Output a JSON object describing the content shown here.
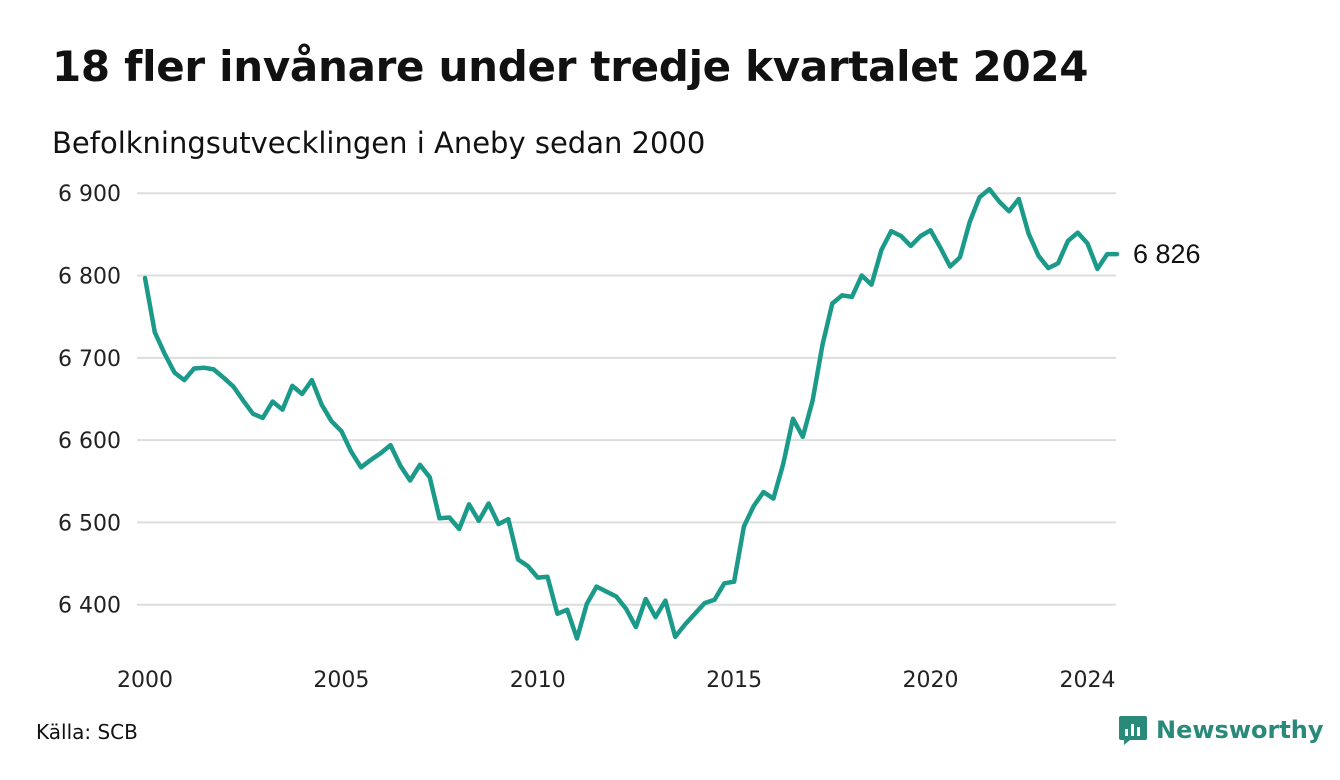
{
  "header": {
    "title": "18 fler invånare under tredje kvartalet 2024",
    "subtitle": "Befolkningsutvecklingen i Aneby sedan 2000"
  },
  "footer": {
    "source": "Källa: SCB",
    "brand": "Newsworthy",
    "brand_icon": "newsworthy-logo-icon"
  },
  "colors": {
    "line": "#1b9a8a",
    "grid": "#dddddd",
    "brand": "#2a8a7a"
  },
  "chart_data": {
    "type": "line",
    "title": "18 fler invånare under tredje kvartalet 2024",
    "subtitle": "Befolkningsutvecklingen i Aneby sedan 2000",
    "xlabel": "",
    "ylabel": "",
    "grid": true,
    "legend": "none",
    "xlim": [
      2000,
      2024.75
    ],
    "ylim": [
      6345,
      6910
    ],
    "x_ticks": [
      2000,
      2005,
      2010,
      2015,
      2020,
      2024
    ],
    "x_tick_labels": [
      "2000",
      "2005",
      "2010",
      "2015",
      "2020",
      "2024"
    ],
    "y_ticks": [
      6400,
      6500,
      6600,
      6700,
      6800,
      6900
    ],
    "y_tick_labels": [
      "6 400",
      "6 500",
      "6 600",
      "6 700",
      "6 800",
      "6 900"
    ],
    "end_label": "6 826",
    "series": [
      {
        "x": [
          2000,
          2000.25,
          2000.5,
          2000.75,
          2001,
          2001.25,
          2001.5,
          2001.75,
          2002,
          2002.25,
          2002.5,
          2002.75,
          2003,
          2003.25,
          2003.5,
          2003.75,
          2004,
          2004.25,
          2004.5,
          2004.75,
          2005,
          2005.25,
          2005.5,
          2005.75,
          2006,
          2006.25,
          2006.5,
          2006.75,
          2007,
          2007.25,
          2007.5,
          2007.75,
          2008,
          2008.25,
          2008.5,
          2008.75,
          2009,
          2009.25,
          2009.5,
          2009.75,
          2010,
          2010.25,
          2010.5,
          2010.75,
          2011,
          2011.25,
          2011.5,
          2011.75,
          2012,
          2012.25,
          2012.5,
          2012.75,
          2013,
          2013.25,
          2013.5,
          2013.75,
          2014,
          2014.25,
          2014.5,
          2014.75,
          2015,
          2015.25,
          2015.5,
          2015.75,
          2016,
          2016.25,
          2016.5,
          2016.75,
          2017,
          2017.25,
          2017.5,
          2017.75,
          2018,
          2018.25,
          2018.5,
          2018.75,
          2019,
          2019.25,
          2019.5,
          2019.75,
          2020,
          2020.25,
          2020.5,
          2020.75,
          2021,
          2021.25,
          2021.5,
          2021.75,
          2022,
          2022.25,
          2022.5,
          2022.75,
          2023,
          2023.25,
          2023.5,
          2023.75,
          2024,
          2024.25,
          2024.5,
          2024.75
        ],
        "values": [
          6797,
          6731,
          6705,
          6682,
          6673,
          6687,
          6688,
          6686,
          6676,
          6665,
          6648,
          6632,
          6627,
          6647,
          6637,
          6666,
          6656,
          6673,
          6643,
          6623,
          6611,
          6586,
          6567,
          6576,
          6584,
          6594,
          6569,
          6551,
          6570,
          6555,
          6505,
          6506,
          6492,
          6522,
          6502,
          6523,
          6498,
          6504,
          6455,
          6447,
          6433,
          6434,
          6389,
          6394,
          6359,
          6401,
          6422,
          6416,
          6410,
          6395,
          6373,
          6407,
          6385,
          6405,
          6361,
          6376,
          6389,
          6402,
          6406,
          6426,
          6428,
          6495,
          6520,
          6537,
          6529,
          6571,
          6626,
          6604,
          6648,
          6716,
          6766,
          6776,
          6774,
          6800,
          6789,
          6831,
          6854,
          6848,
          6836,
          6848,
          6855,
          6834,
          6811,
          6822,
          6865,
          6895,
          6905,
          6890,
          6878,
          6893,
          6851,
          6824,
          6809,
          6815,
          6842,
          6852,
          6839,
          6808,
          6826,
          6826
        ]
      }
    ]
  }
}
